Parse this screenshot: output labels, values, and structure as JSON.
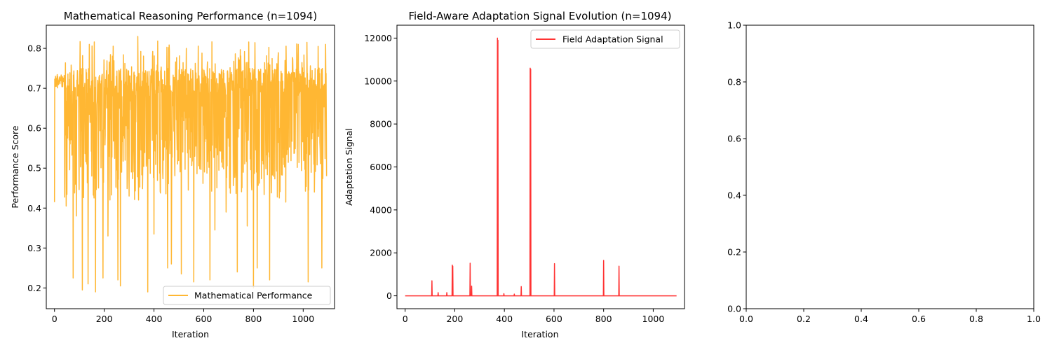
{
  "chart_data": [
    {
      "type": "line",
      "title": "Mathematical Reasoning Performance (n=1094)",
      "xlabel": "Iteration",
      "ylabel": "Performance Score",
      "xlim": [
        -33,
        1126
      ],
      "ylim": [
        0.148,
        0.858
      ],
      "xticks": [
        0,
        200,
        400,
        600,
        800,
        1000
      ],
      "yticks": [
        0.2,
        0.3,
        0.4,
        0.5,
        0.6,
        0.7,
        0.8
      ],
      "legend_position": "lower-right",
      "grid": false,
      "series": [
        {
          "name": "Mathematical Performance",
          "color": "#FFA500",
          "generated": true,
          "n": 1094,
          "baseline": 0.72,
          "upper_range": [
            0.48,
            0.82
          ],
          "low_spikes": [
            [
              0,
              0.415
            ],
            [
              47,
              0.405
            ],
            [
              75,
              0.225
            ],
            [
              88,
              0.38
            ],
            [
              112,
              0.195
            ],
            [
              135,
              0.21
            ],
            [
              165,
              0.19
            ],
            [
              195,
              0.225
            ],
            [
              215,
              0.33
            ],
            [
              255,
              0.22
            ],
            [
              265,
              0.205
            ],
            [
              300,
              0.43
            ],
            [
              375,
              0.19
            ],
            [
              400,
              0.335
            ],
            [
              455,
              0.25
            ],
            [
              470,
              0.26
            ],
            [
              510,
              0.235
            ],
            [
              560,
              0.215
            ],
            [
              625,
              0.22
            ],
            [
              645,
              0.345
            ],
            [
              690,
              0.39
            ],
            [
              735,
              0.24
            ],
            [
              775,
              0.355
            ],
            [
              800,
              0.2
            ],
            [
              815,
              0.25
            ],
            [
              865,
              0.22
            ],
            [
              930,
              0.415
            ],
            [
              1020,
              0.215
            ],
            [
              1075,
              0.25
            ],
            [
              1094,
              0.48
            ]
          ],
          "high_spikes": [
            [
              140,
              0.81
            ],
            [
              265,
              0.795
            ],
            [
              335,
              0.83
            ],
            [
              530,
              0.8
            ],
            [
              980,
              0.81
            ],
            [
              1015,
              0.815
            ],
            [
              1060,
              0.805
            ],
            [
              1090,
              0.81
            ]
          ]
        }
      ]
    },
    {
      "type": "line",
      "title": "Field-Aware Adaptation Signal Evolution (n=1094)",
      "xlabel": "Iteration",
      "ylabel": "Adaptation Signal",
      "xlim": [
        -33,
        1126
      ],
      "ylim": [
        -600,
        12600
      ],
      "xticks": [
        0,
        200,
        400,
        600,
        800,
        1000
      ],
      "yticks": [
        0,
        2000,
        4000,
        6000,
        8000,
        10000,
        12000
      ],
      "legend_position": "upper-right",
      "grid": false,
      "series": [
        {
          "name": "Field Adaptation Signal",
          "color": "#FF0000",
          "baseline": 0,
          "x_max": 1094,
          "spikes": [
            [
              108,
              700
            ],
            [
              133,
              150
            ],
            [
              168,
              150
            ],
            [
              190,
              1430
            ],
            [
              192,
              1380
            ],
            [
              262,
              1520
            ],
            [
              268,
              450
            ],
            [
              372,
              12000
            ],
            [
              374,
              11900
            ],
            [
              398,
              100
            ],
            [
              440,
              80
            ],
            [
              468,
              430
            ],
            [
              504,
              10600
            ],
            [
              506,
              10550
            ],
            [
              602,
              1500
            ],
            [
              800,
              1650
            ],
            [
              862,
              1380
            ]
          ]
        }
      ]
    },
    {
      "type": "line",
      "title": "",
      "xlabel": "",
      "ylabel": "",
      "xlim": [
        0,
        1
      ],
      "ylim": [
        0,
        1
      ],
      "xticks": [
        0.0,
        0.2,
        0.4,
        0.6,
        0.8,
        1.0
      ],
      "yticks": [
        0.0,
        0.2,
        0.4,
        0.6,
        0.8,
        1.0
      ],
      "series": []
    }
  ]
}
